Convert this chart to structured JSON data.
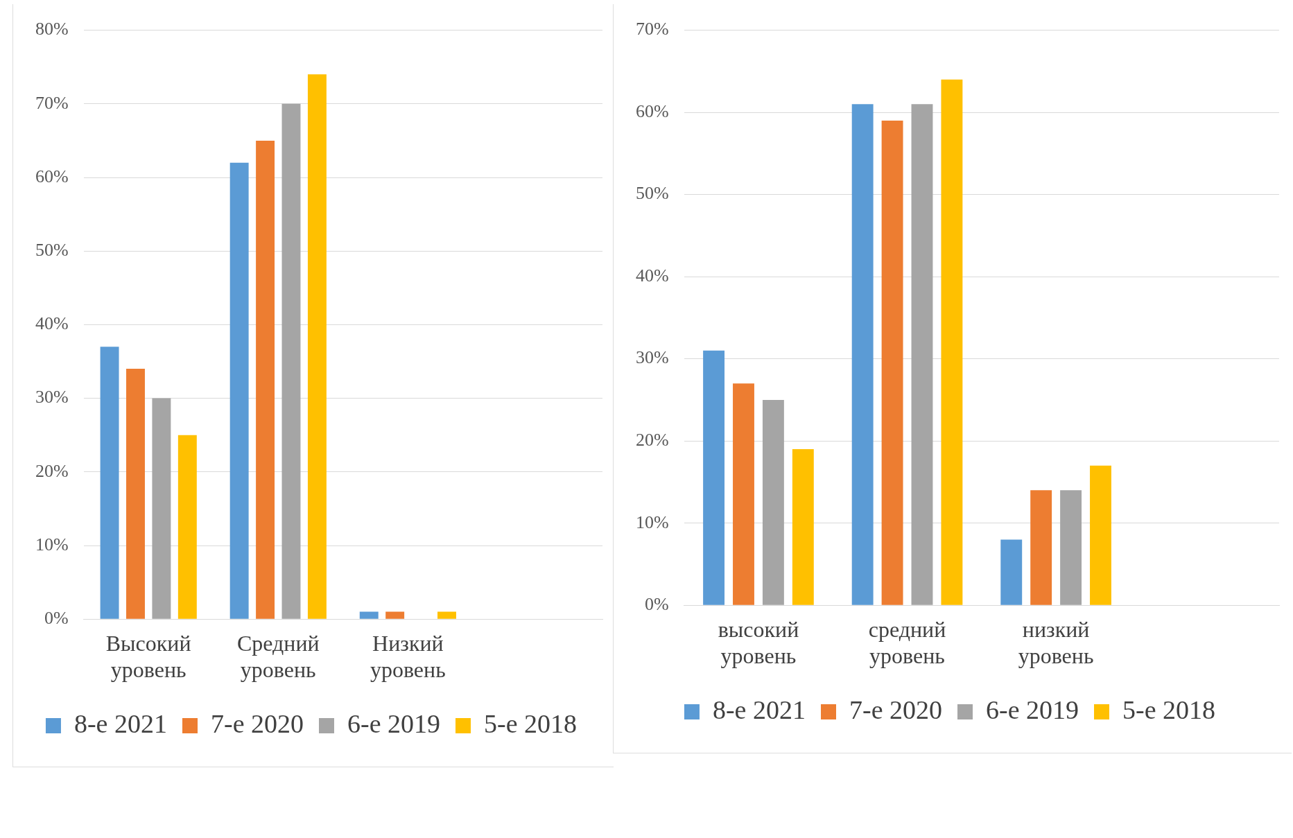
{
  "chart_data": [
    {
      "type": "bar",
      "categories": [
        "Высокий уровень",
        "Средний уровень",
        "Низкий уровень",
        null
      ],
      "series": [
        {
          "name": "8-е 2021",
          "color": "#5b9bd5",
          "values": [
            37,
            62,
            1,
            null
          ]
        },
        {
          "name": "7-е 2020",
          "color": "#ed7d31",
          "values": [
            34,
            65,
            1,
            null
          ]
        },
        {
          "name": "6-е 2019",
          "color": "#a5a5a5",
          "values": [
            30,
            70,
            0,
            null
          ]
        },
        {
          "name": "5-е 2018",
          "color": "#ffc000",
          "values": [
            25,
            74,
            1,
            null
          ]
        }
      ],
      "ylim": [
        0,
        80
      ],
      "yticks": [
        {
          "value": 0,
          "label": "0%"
        },
        {
          "value": 10,
          "label": "10%"
        },
        {
          "value": 20,
          "label": "20%"
        },
        {
          "value": 30,
          "label": "30%"
        },
        {
          "value": 40,
          "label": "40%"
        },
        {
          "value": 50,
          "label": "50%"
        },
        {
          "value": 60,
          "label": "60%"
        },
        {
          "value": 70,
          "label": "70%"
        },
        {
          "value": 80,
          "label": "80%"
        }
      ],
      "grid": "y",
      "legend": "bottom"
    },
    {
      "type": "bar",
      "categories": [
        "высокий уровень",
        "средний уровень",
        "низкий уровень",
        null
      ],
      "series": [
        {
          "name": "8-е 2021",
          "color": "#5b9bd5",
          "values": [
            31,
            61,
            8,
            null
          ]
        },
        {
          "name": "7-е 2020",
          "color": "#ed7d31",
          "values": [
            27,
            59,
            14,
            null
          ]
        },
        {
          "name": "6-е 2019",
          "color": "#a5a5a5",
          "values": [
            25,
            61,
            14,
            null
          ]
        },
        {
          "name": "5-е 2018",
          "color": "#ffc000",
          "values": [
            19,
            64,
            17,
            null
          ]
        }
      ],
      "ylim": [
        0,
        70
      ],
      "yticks": [
        {
          "value": 0,
          "label": "0%"
        },
        {
          "value": 10,
          "label": "10%"
        },
        {
          "value": 20,
          "label": "20%"
        },
        {
          "value": 30,
          "label": "30%"
        },
        {
          "value": 40,
          "label": "40%"
        },
        {
          "value": 50,
          "label": "50%"
        },
        {
          "value": 60,
          "label": "60%"
        },
        {
          "value": 70,
          "label": "70%"
        }
      ],
      "grid": "y",
      "legend": "bottom"
    }
  ]
}
